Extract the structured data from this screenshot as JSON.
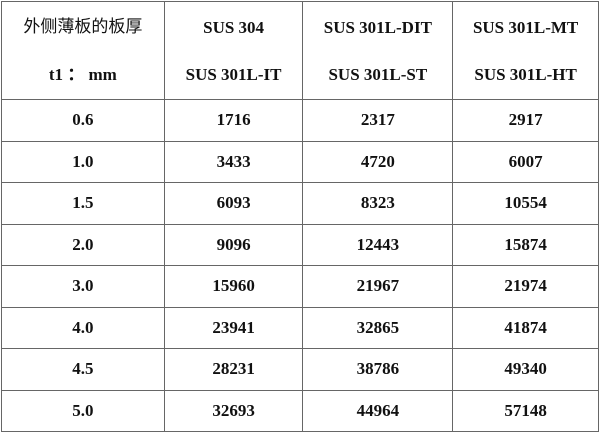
{
  "header": {
    "col0": [
      "外侧薄板的板厚",
      "t1 ： mm"
    ],
    "col1": [
      "SUS  304",
      "SUS  301L-IT"
    ],
    "col2": [
      "SUS  301L-DIT",
      "SUS  301L-ST"
    ],
    "col3": [
      "SUS  301L-MT",
      "SUS  301L-HT"
    ]
  },
  "rows": [
    [
      "0.6",
      "1716",
      "2317",
      "2917"
    ],
    [
      "1.0",
      "3433",
      "4720",
      "6007"
    ],
    [
      "1.5",
      "6093",
      "8323",
      "10554"
    ],
    [
      "2.0",
      "9096",
      "12443",
      "15874"
    ],
    [
      "3.0",
      "15960",
      "21967",
      "21974"
    ],
    [
      "4.0",
      "23941",
      "32865",
      "41874"
    ],
    [
      "4.5",
      "28231",
      "38786",
      "49340"
    ],
    [
      "5.0",
      "32693",
      "44964",
      "57148"
    ]
  ]
}
